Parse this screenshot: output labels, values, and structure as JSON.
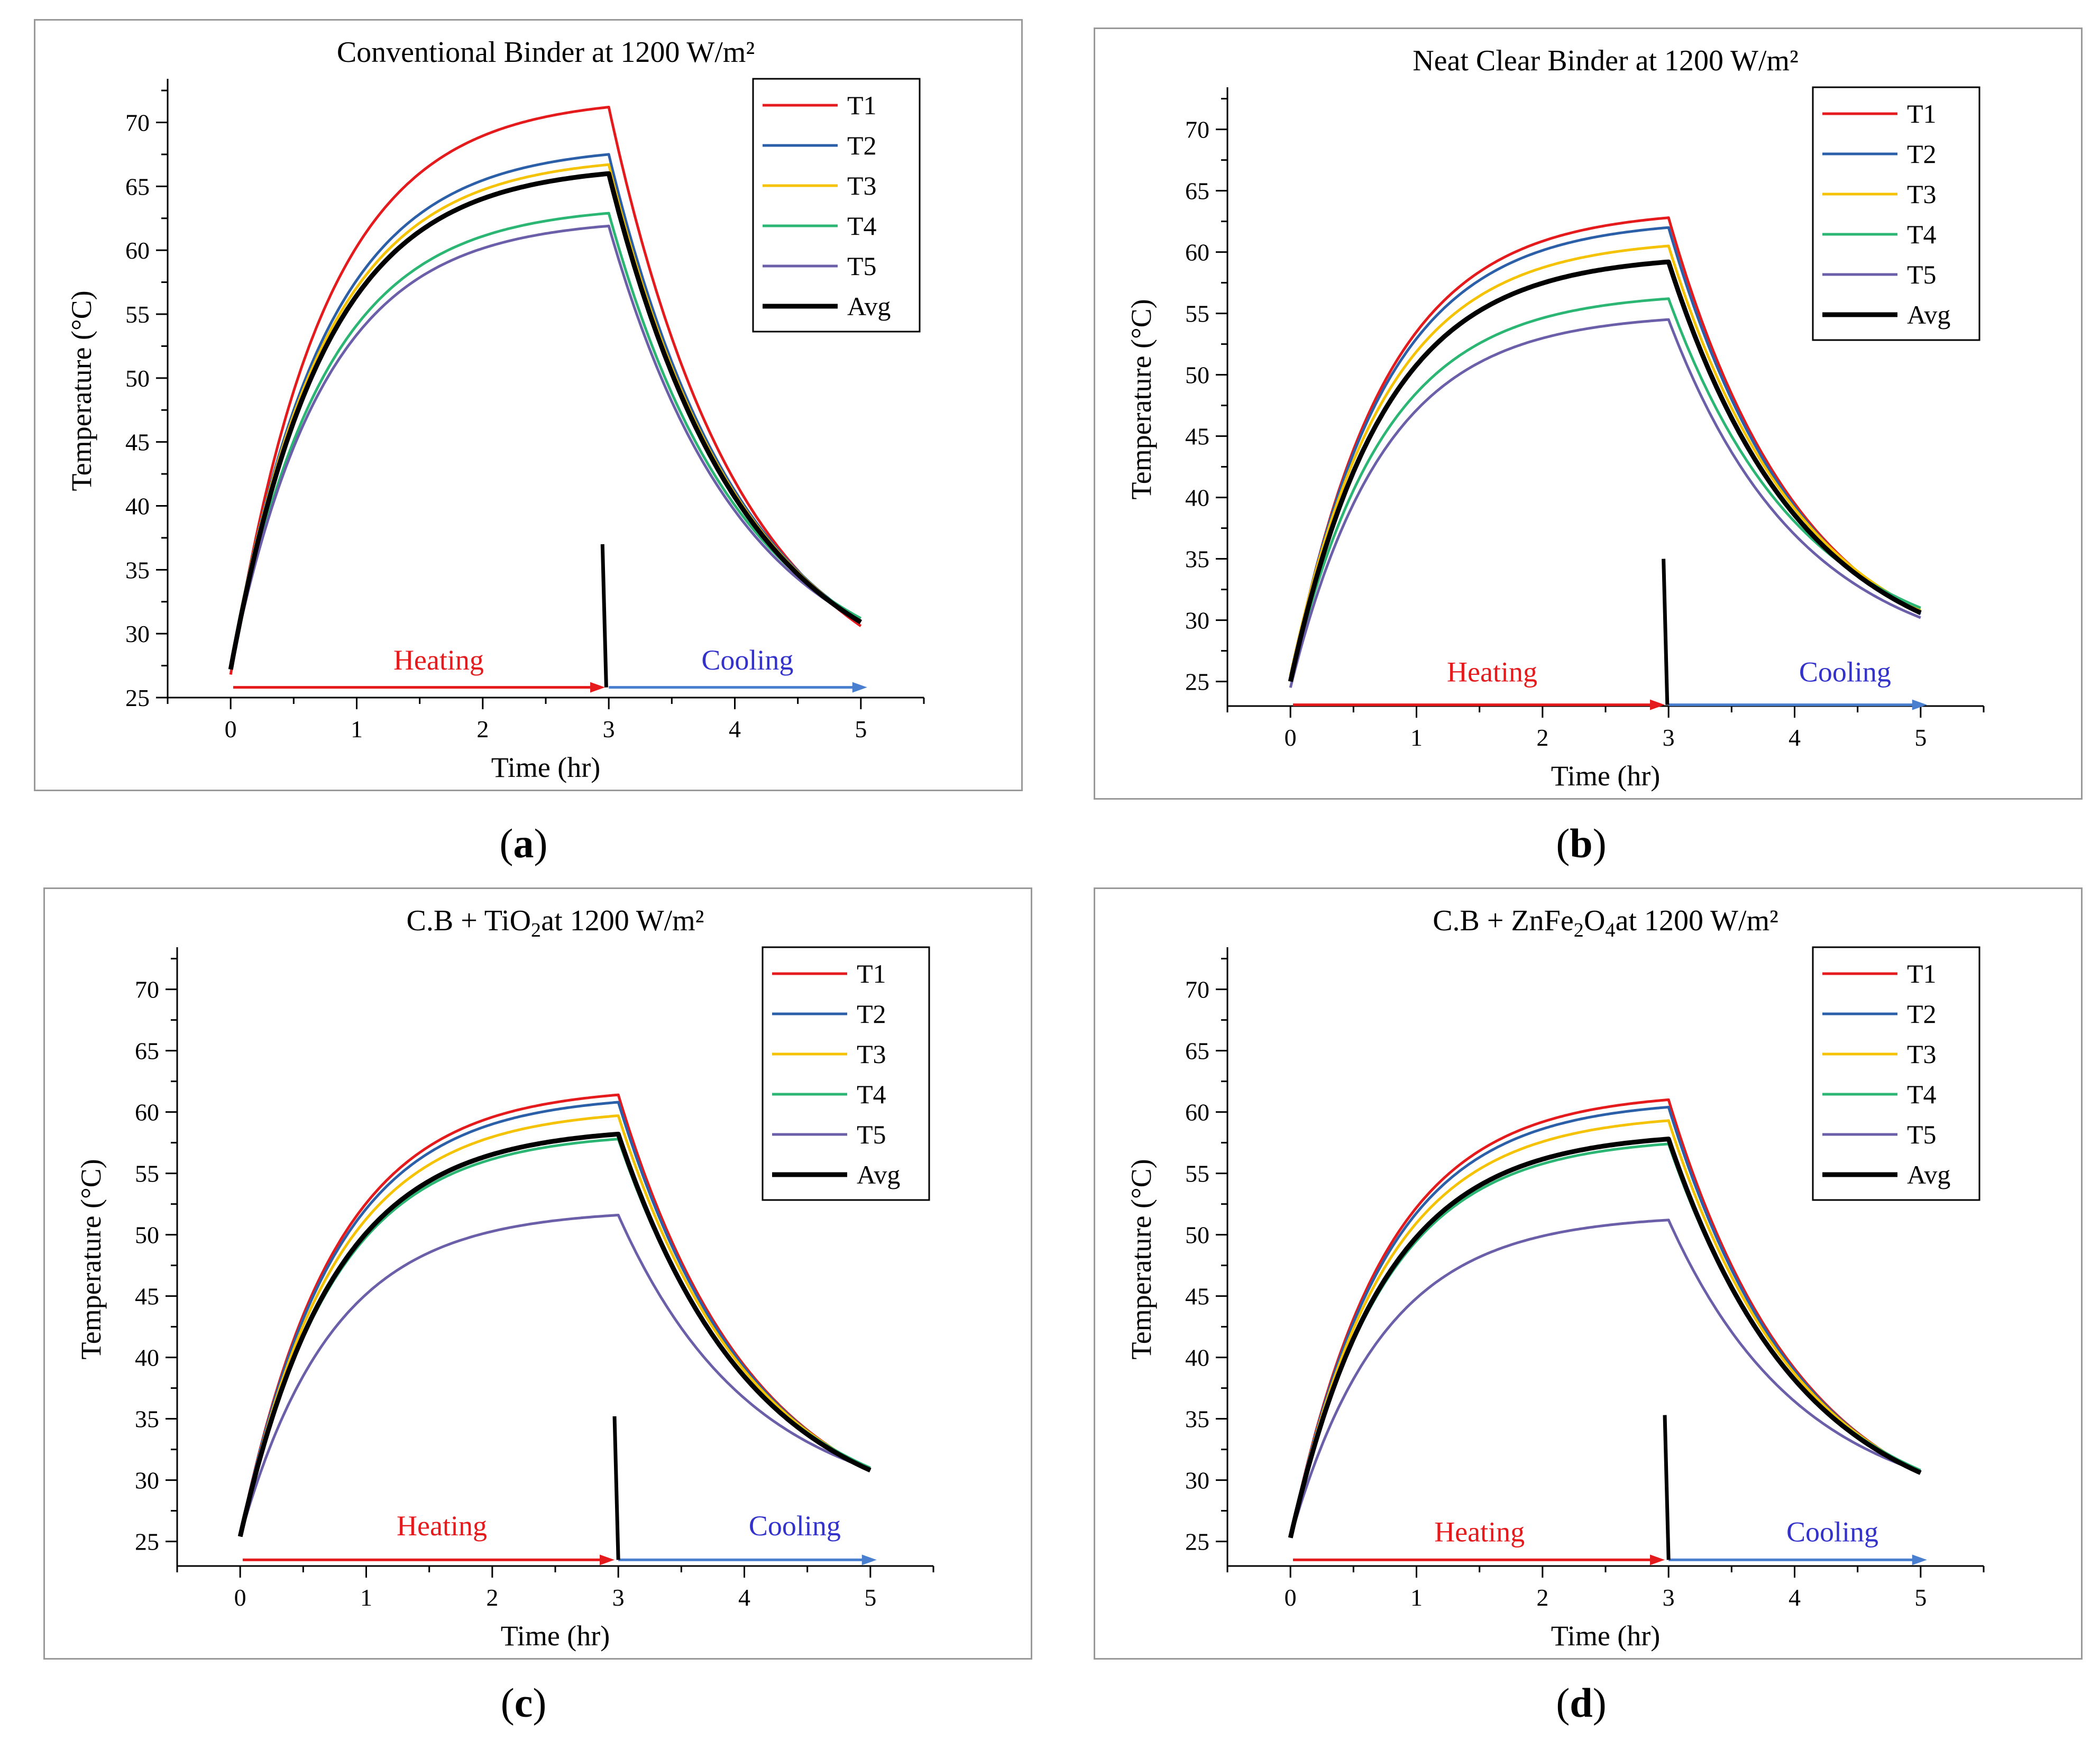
{
  "figure": {
    "panels": [
      {
        "label": "a",
        "chart_data": {
          "type": "line",
          "title": "Conventional Binder at 1200 W/m²",
          "title_parts": [
            {
              "t": "Conventional Binder at 1200 W/m²"
            }
          ],
          "xlabel": "Time (hr)",
          "ylabel": "Temperature (°C)",
          "xlim": [
            -0.5,
            5.5
          ],
          "ylim": [
            25,
            73
          ],
          "xticks": [
            0,
            1,
            2,
            3,
            4,
            5
          ],
          "yticks": [
            25,
            30,
            35,
            40,
            45,
            50,
            55,
            60,
            65,
            70
          ],
          "grid": false,
          "legend": "top-right",
          "annotations": [
            {
              "text": "Heating",
              "color": "#e41a1c",
              "x": 1.65,
              "y": 27.2
            },
            {
              "text": "Cooling",
              "color": "#3333cc",
              "x": 4.1,
              "y": 27.2
            }
          ],
          "arrows": [
            {
              "x0": 0.02,
              "x1": 2.97,
              "y": 25.8,
              "color": "#e41a1c"
            },
            {
              "x0": 3.0,
              "x1": 5.05,
              "y": 25.8,
              "color": "#4a7fd0"
            }
          ],
          "marker_line": {
            "x0": 2.95,
            "y0": 37,
            "x1": 2.98,
            "y1": 25.8
          },
          "series": [
            {
              "name": "T1",
              "color": "#e41a1c",
              "start": 26.8,
              "peak": 71.2,
              "end": 30.6
            },
            {
              "name": "T2",
              "color": "#2b5fa8",
              "start": 27.5,
              "peak": 67.5,
              "end": 31.0
            },
            {
              "name": "T3",
              "color": "#f5c200",
              "start": 27.6,
              "peak": 66.7,
              "end": 31.0
            },
            {
              "name": "T4",
              "color": "#2bb673",
              "start": 27.3,
              "peak": 62.9,
              "end": 31.2
            },
            {
              "name": "T5",
              "color": "#6a5fa8",
              "start": 27.3,
              "peak": 61.9,
              "end": 31.0
            },
            {
              "name": "Avg",
              "color": "#000000",
              "start": 27.2,
              "peak": 66.0,
              "end": 30.9
            }
          ]
        }
      },
      {
        "label": "b",
        "chart_data": {
          "type": "line",
          "title": "Neat Clear Binder at 1200 W/m²",
          "title_parts": [
            {
              "t": "Neat Clear Binder at 1200 W/m²"
            }
          ],
          "xlabel": "Time (hr)",
          "ylabel": "Temperature (°C)",
          "xlim": [
            -0.5,
            5.5
          ],
          "ylim": [
            23,
            73
          ],
          "xticks": [
            0,
            1,
            2,
            3,
            4,
            5
          ],
          "yticks": [
            25,
            30,
            35,
            40,
            45,
            50,
            55,
            60,
            65,
            70
          ],
          "grid": false,
          "legend": "top-right",
          "annotations": [
            {
              "text": "Heating",
              "color": "#e41a1c",
              "x": 1.6,
              "y": 25.0
            },
            {
              "text": "Cooling",
              "color": "#3333cc",
              "x": 4.4,
              "y": 25.0
            }
          ],
          "arrows": [
            {
              "x0": 0.02,
              "x1": 2.97,
              "y": 23.1,
              "color": "#e41a1c"
            },
            {
              "x0": 3.0,
              "x1": 5.05,
              "y": 23.1,
              "color": "#4a7fd0"
            }
          ],
          "marker_line": {
            "x0": 2.96,
            "y0": 35,
            "x1": 2.99,
            "y1": 23.1
          },
          "series": [
            {
              "name": "T1",
              "color": "#e41a1c",
              "start": 25.0,
              "peak": 62.8,
              "end": 30.5
            },
            {
              "name": "T2",
              "color": "#2b5fa8",
              "start": 25.2,
              "peak": 62.0,
              "end": 30.5
            },
            {
              "name": "T3",
              "color": "#f5c200",
              "start": 25.5,
              "peak": 60.5,
              "end": 30.8
            },
            {
              "name": "T4",
              "color": "#2bb673",
              "start": 25.0,
              "peak": 56.2,
              "end": 31.0
            },
            {
              "name": "T5",
              "color": "#6a5fa8",
              "start": 24.5,
              "peak": 54.5,
              "end": 30.2
            },
            {
              "name": "Avg",
              "color": "#000000",
              "start": 25.0,
              "peak": 59.2,
              "end": 30.6
            }
          ]
        }
      },
      {
        "label": "c",
        "chart_data": {
          "type": "line",
          "title": "C.B + TiO2 at 1200 W/m²",
          "title_parts": [
            {
              "t": "C.B + TiO"
            },
            {
              "t": "2",
              "sub": true
            },
            {
              "t": " at 1200 W/m²"
            }
          ],
          "xlabel": "Time (hr)",
          "ylabel": "Temperature (°C)",
          "xlim": [
            -0.5,
            5.5
          ],
          "ylim": [
            23,
            73
          ],
          "xticks": [
            0,
            1,
            2,
            3,
            4,
            5
          ],
          "yticks": [
            25,
            30,
            35,
            40,
            45,
            50,
            55,
            60,
            65,
            70
          ],
          "grid": false,
          "legend": "top-right",
          "annotations": [
            {
              "text": "Heating",
              "color": "#e41a1c",
              "x": 1.6,
              "y": 25.5
            },
            {
              "text": "Cooling",
              "color": "#3333cc",
              "x": 4.4,
              "y": 25.5
            }
          ],
          "arrows": [
            {
              "x0": 0.02,
              "x1": 2.97,
              "y": 23.5,
              "color": "#e41a1c"
            },
            {
              "x0": 3.0,
              "x1": 5.05,
              "y": 23.5,
              "color": "#4a7fd0"
            }
          ],
          "marker_line": {
            "x0": 2.97,
            "y0": 35.2,
            "x1": 3.0,
            "y1": 23.5
          },
          "series": [
            {
              "name": "T1",
              "color": "#e41a1c",
              "start": 25.5,
              "peak": 61.4,
              "end": 30.8
            },
            {
              "name": "T2",
              "color": "#2b5fa8",
              "start": 25.5,
              "peak": 60.8,
              "end": 30.8
            },
            {
              "name": "T3",
              "color": "#f5c200",
              "start": 25.5,
              "peak": 59.7,
              "end": 30.9
            },
            {
              "name": "T4",
              "color": "#2bb673",
              "start": 25.4,
              "peak": 57.8,
              "end": 31.0
            },
            {
              "name": "T5",
              "color": "#6a5fa8",
              "start": 25.4,
              "peak": 51.6,
              "end": 30.9
            },
            {
              "name": "Avg",
              "color": "#000000",
              "start": 25.4,
              "peak": 58.2,
              "end": 30.8
            }
          ]
        }
      },
      {
        "label": "d",
        "chart_data": {
          "type": "line",
          "title": "C.B + ZnFe2O4 at 1200 W/m²",
          "title_parts": [
            {
              "t": "C.B + ZnFe"
            },
            {
              "t": "2",
              "sub": true
            },
            {
              "t": "O"
            },
            {
              "t": "4",
              "sub": true
            },
            {
              "t": " at 1200 W/m²"
            }
          ],
          "xlabel": "Time (hr)",
          "ylabel": "Temperature (°C)",
          "xlim": [
            -0.5,
            5.5
          ],
          "ylim": [
            23,
            73
          ],
          "xticks": [
            0,
            1,
            2,
            3,
            4,
            5
          ],
          "yticks": [
            25,
            30,
            35,
            40,
            45,
            50,
            55,
            60,
            65,
            70
          ],
          "grid": false,
          "legend": "top-right",
          "annotations": [
            {
              "text": "Heating",
              "color": "#e41a1c",
              "x": 1.5,
              "y": 25.0
            },
            {
              "text": "Cooling",
              "color": "#3333cc",
              "x": 4.3,
              "y": 25.0
            }
          ],
          "arrows": [
            {
              "x0": 0.02,
              "x1": 2.97,
              "y": 23.5,
              "color": "#e41a1c"
            },
            {
              "x0": 3.0,
              "x1": 5.05,
              "y": 23.5,
              "color": "#4a7fd0"
            }
          ],
          "marker_line": {
            "x0": 2.97,
            "y0": 35.3,
            "x1": 3.0,
            "y1": 23.5
          },
          "series": [
            {
              "name": "T1",
              "color": "#e41a1c",
              "start": 25.3,
              "peak": 61.0,
              "end": 30.6
            },
            {
              "name": "T2",
              "color": "#2b5fa8",
              "start": 25.3,
              "peak": 60.4,
              "end": 30.6
            },
            {
              "name": "T3",
              "color": "#f5c200",
              "start": 25.4,
              "peak": 59.3,
              "end": 30.7
            },
            {
              "name": "T4",
              "color": "#2bb673",
              "start": 25.3,
              "peak": 57.4,
              "end": 30.8
            },
            {
              "name": "T5",
              "color": "#6a5fa8",
              "start": 25.3,
              "peak": 51.2,
              "end": 30.7
            },
            {
              "name": "Avg",
              "color": "#000000",
              "start": 25.3,
              "peak": 57.8,
              "end": 30.6
            }
          ]
        }
      }
    ]
  }
}
